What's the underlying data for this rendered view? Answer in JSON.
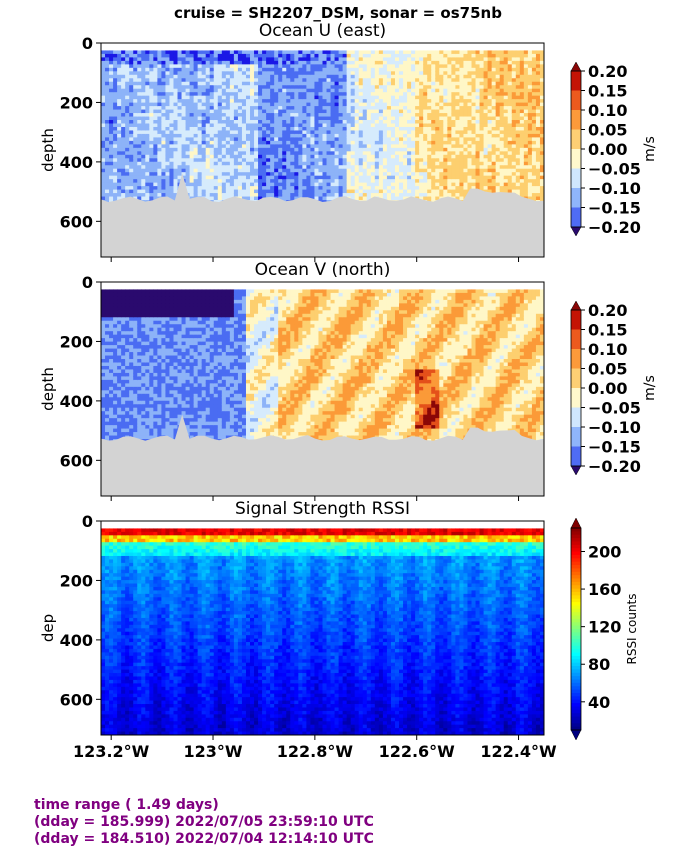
{
  "suptitle": "cruise = SH2207_DSM,  sonar = os75nb",
  "footer": {
    "line1": "time range ( 1.49 days)",
    "line2": "(dday = 185.999) 2022/07/05 23:59:10 UTC",
    "line3": "(dday = 184.510) 2022/07/04 12:14:10 UTC"
  },
  "chart_data": [
    {
      "type": "heatmap",
      "title": "Ocean U (east)",
      "ylabel": "depth",
      "xlim": [
        -123.22,
        -122.35
      ],
      "ylim": [
        720,
        0
      ],
      "yticks": [
        0,
        200,
        400,
        600
      ],
      "ytick_labels": [
        "0",
        "200",
        "400",
        "600"
      ],
      "xticks": [
        -123.2,
        -123.0,
        -122.8,
        -122.6,
        -122.4
      ],
      "colorbar": {
        "label": "m/s",
        "range": [
          -0.2,
          0.2
        ],
        "ticks": [
          0.2,
          0.15,
          0.1,
          0.05,
          0.0,
          -0.05,
          -0.1,
          -0.15,
          -0.2
        ],
        "tick_labels": [
          "0.20",
          "0.15",
          "0.10",
          "0.05",
          "0.00",
          "−0.05",
          "−0.10",
          "−0.15",
          "−0.20"
        ],
        "colormap": "blue-white-red"
      },
      "data_depth_range": [
        25,
        540
      ],
      "bottom_mask_color": "#d3d3d3"
    },
    {
      "type": "heatmap",
      "title": "Ocean V (north)",
      "ylabel": "depth",
      "xlim": [
        -123.22,
        -122.35
      ],
      "ylim": [
        720,
        0
      ],
      "yticks": [
        0,
        200,
        400,
        600
      ],
      "ytick_labels": [
        "0",
        "200",
        "400",
        "600"
      ],
      "xticks": [
        -123.2,
        -123.0,
        -122.8,
        -122.6,
        -122.4
      ],
      "colorbar": {
        "label": "m/s",
        "range": [
          -0.2,
          0.2
        ],
        "ticks": [
          0.2,
          0.15,
          0.1,
          0.05,
          0.0,
          -0.05,
          -0.1,
          -0.15,
          -0.2
        ],
        "tick_labels": [
          "0.20",
          "0.15",
          "0.10",
          "0.05",
          "0.00",
          "−0.05",
          "−0.10",
          "−0.15",
          "−0.20"
        ],
        "colormap": "blue-white-red"
      },
      "data_depth_range": [
        25,
        540
      ],
      "bottom_mask_color": "#d3d3d3"
    },
    {
      "type": "heatmap",
      "title": "Signal Strength RSSI",
      "ylabel": "dep",
      "xlim": [
        -123.22,
        -122.35
      ],
      "ylim": [
        720,
        0
      ],
      "yticks": [
        0,
        200,
        400,
        600
      ],
      "ytick_labels": [
        "0",
        "200",
        "400",
        "600"
      ],
      "xticks": [
        -123.2,
        -123.0,
        -122.8,
        -122.6,
        -122.4
      ],
      "xtick_labels": [
        "123.2°W",
        "123°W",
        "122.8°W",
        "122.6°W",
        "122.4°W"
      ],
      "colorbar": {
        "label": "RSSI counts",
        "range": [
          10,
          225
        ],
        "ticks": [
          200,
          160,
          120,
          80,
          40
        ],
        "tick_labels": [
          "200",
          "160",
          "120",
          "80",
          "40"
        ],
        "colormap": "jet"
      },
      "data_depth_range": [
        25,
        720
      ]
    }
  ]
}
